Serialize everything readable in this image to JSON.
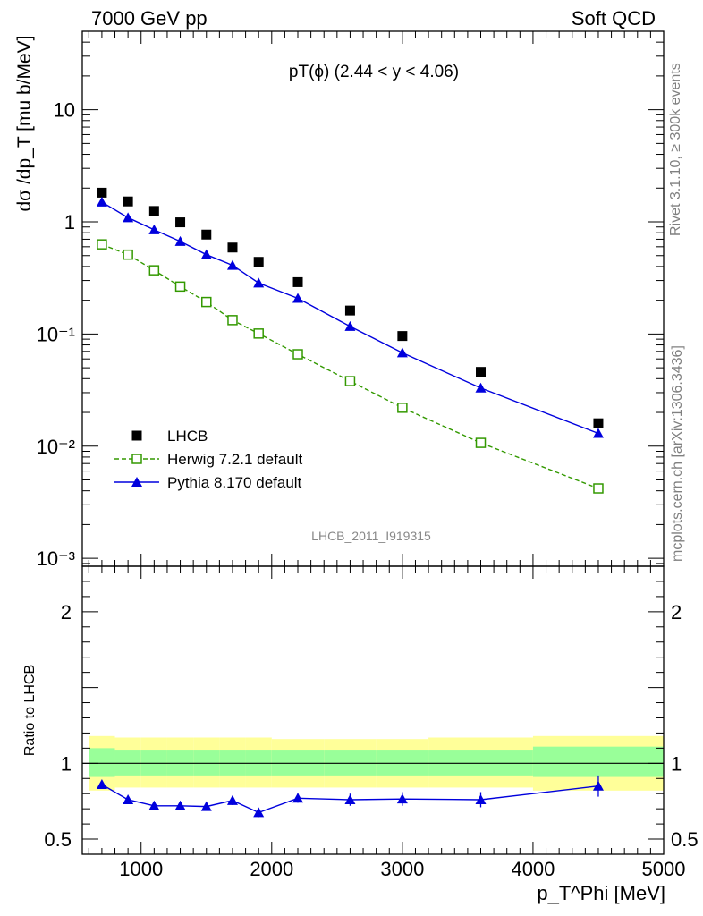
{
  "header": {
    "left": "7000 GeV pp",
    "right": "Soft QCD"
  },
  "side_labels": {
    "rivet": "Rivet 3.1.10, ≥ 300k events",
    "mcplots": "mcplots.cern.ch [arXiv:1306.3436]"
  },
  "colors": {
    "lhcb": "#000000",
    "herwig": "#339900",
    "pythia": "#0000dd",
    "band_outer": "#ffff99",
    "band_inner": "#99ff99"
  },
  "chart_data": [
    {
      "type": "scatter",
      "title": "pT(ϕ) (2.44 < y < 4.06)",
      "ylabel": "dσ /dp_T [mu b/MeV]",
      "xlabel": "",
      "yscale": "log",
      "xlim": [
        550,
        5000
      ],
      "ylim": [
        0.00085,
        50
      ],
      "watermark": "LHCB_2011_I919315",
      "legend_position": "bottom-left",
      "y_tick_labels": [
        "10⁻³",
        "10⁻²",
        "10⁻¹",
        "1",
        "10"
      ],
      "x": [
        700,
        900,
        1100,
        1300,
        1500,
        1700,
        1900,
        2200,
        2600,
        3000,
        3600,
        4500
      ],
      "series": [
        {
          "name": "LHCB",
          "marker": "filled-square",
          "values": [
            1.82,
            1.52,
            1.25,
            0.99,
            0.77,
            0.59,
            0.44,
            0.29,
            0.162,
            0.096,
            0.046,
            0.016
          ]
        },
        {
          "name": "Herwig 7.2.1 default",
          "marker": "open-square",
          "line": "dashed",
          "values": [
            0.63,
            0.51,
            0.37,
            0.265,
            0.193,
            0.133,
            0.101,
            0.066,
            0.038,
            0.022,
            0.0107,
            0.0042
          ]
        },
        {
          "name": "Pythia 8.170 default",
          "marker": "filled-triangle",
          "line": "solid",
          "values": [
            1.5,
            1.09,
            0.85,
            0.67,
            0.51,
            0.41,
            0.285,
            0.208,
            0.117,
            0.068,
            0.033,
            0.013
          ]
        }
      ]
    },
    {
      "type": "line",
      "ylabel": "Ratio to LHCB",
      "xlabel": "p_T^Phi [MeV]",
      "xlim": [
        550,
        5000
      ],
      "ylim": [
        0.4,
        2.3
      ],
      "x_ticks": [
        1000,
        2000,
        3000,
        4000,
        5000
      ],
      "y_ticks": [
        0.5,
        1,
        2
      ],
      "band_edges": [
        600,
        800,
        1000,
        1200,
        1400,
        1600,
        1800,
        2000,
        2400,
        2800,
        3200,
        4000,
        5000
      ],
      "band_outer": {
        "low": [
          0.82,
          0.84,
          0.84,
          0.84,
          0.84,
          0.84,
          0.84,
          0.84,
          0.84,
          0.84,
          0.84,
          0.82
        ],
        "high": [
          1.18,
          1.17,
          1.17,
          1.17,
          1.17,
          1.17,
          1.17,
          1.16,
          1.16,
          1.16,
          1.17,
          1.18
        ]
      },
      "band_inner": {
        "low": [
          0.91,
          0.92,
          0.92,
          0.92,
          0.92,
          0.92,
          0.92,
          0.92,
          0.92,
          0.92,
          0.92,
          0.91
        ],
        "high": [
          1.1,
          1.09,
          1.09,
          1.09,
          1.09,
          1.09,
          1.09,
          1.09,
          1.09,
          1.09,
          1.09,
          1.11
        ]
      },
      "series": [
        {
          "name": "Pythia 8.170 default",
          "x": [
            700,
            900,
            1100,
            1300,
            1500,
            1700,
            1900,
            2200,
            2600,
            3000,
            3600,
            4500
          ],
          "values": [
            0.86,
            0.76,
            0.72,
            0.72,
            0.715,
            0.755,
            0.675,
            0.77,
            0.76,
            0.765,
            0.76,
            0.85
          ],
          "err": [
            0.0,
            0.01,
            0.015,
            0.02,
            0.025,
            0.03,
            0.03,
            0.03,
            0.04,
            0.045,
            0.05,
            0.07
          ]
        }
      ]
    }
  ]
}
